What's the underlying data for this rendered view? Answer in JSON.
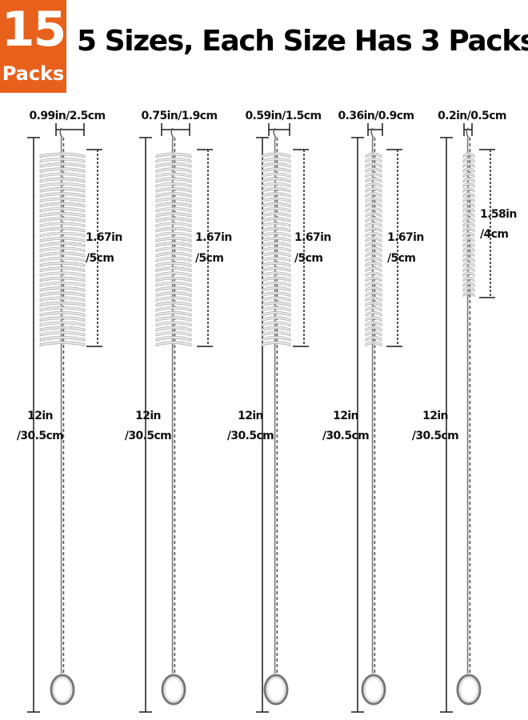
{
  "badge": {
    "count": "15",
    "word": "Packs",
    "color": "#e8611c"
  },
  "headline": "5 Sizes, Each Size Has 3 Packs.",
  "brushes": [
    {
      "diameter": "0.99in/2.5cm",
      "bristle_length_in": "1.67in",
      "bristle_length_cm": "/5cm",
      "total_length_in": "12in",
      "total_length_cm": "/30.5cm"
    },
    {
      "diameter": "0.75in/1.9cm",
      "bristle_length_in": "1.67in",
      "bristle_length_cm": "/5cm",
      "total_length_in": "12in",
      "total_length_cm": "/30.5cm"
    },
    {
      "diameter": "0.59in/1.5cm",
      "bristle_length_in": "1.67in",
      "bristle_length_cm": "/5cm",
      "total_length_in": "12in",
      "total_length_cm": "/30.5cm"
    },
    {
      "diameter": "0.36in/0.9cm",
      "bristle_length_in": "1.67in",
      "bristle_length_cm": "/5cm",
      "total_length_in": "12in",
      "total_length_cm": "/30.5cm"
    },
    {
      "diameter": "0.2in/0.5cm",
      "bristle_length_in": "1.58in",
      "bristle_length_cm": "/4cm",
      "total_length_in": "12in",
      "total_length_cm": "/30.5cm"
    }
  ]
}
